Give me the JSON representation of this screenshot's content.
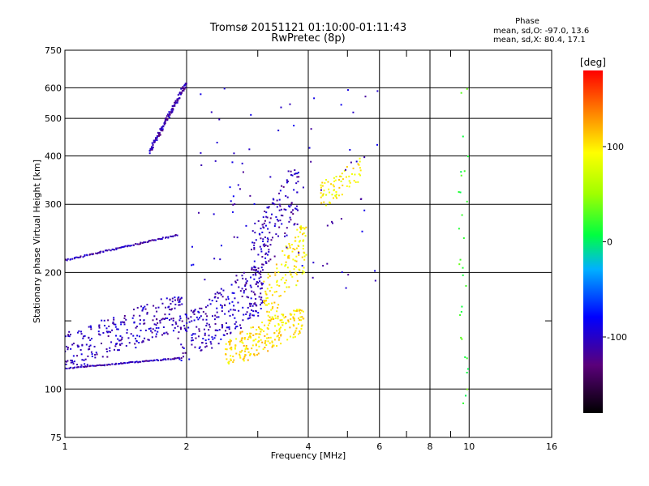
{
  "chart_data": {
    "type": "scatter",
    "title": "Tromsø 20151121 01:10:00-01:11:43",
    "subtitle": "RwPretec (8p)",
    "phase_title": "Phase",
    "phase_o": "mean, sd,O: -97.0, 13.6",
    "phase_x": "mean, sd,X:  80.4, 17.1",
    "xlabel": "Frequency [MHz]",
    "ylabel": "Stationary phase Virtual Height [km]",
    "x_scale": "log",
    "y_scale": "log",
    "xlim": [
      1,
      16
    ],
    "ylim": [
      75,
      750
    ],
    "x_ticks": [
      1,
      2,
      4,
      6,
      8,
      10,
      16
    ],
    "x_minor_ticks": [
      3,
      5,
      7,
      9
    ],
    "y_ticks": [
      75,
      100,
      200,
      300,
      400,
      500,
      600,
      750
    ],
    "y_minor_ticks": [
      150
    ],
    "grid": true,
    "colorbar": {
      "label": "[deg]",
      "range": [
        -180,
        180
      ],
      "ticks": [
        100,
        0,
        -100
      ]
    },
    "traces": [
      {
        "x0": 1.0,
        "x1": 1.9,
        "y0": 113,
        "y1": 120,
        "n": 90,
        "phase": -110,
        "spread": 3
      },
      {
        "x0": 1.0,
        "x1": 1.95,
        "y0": 117,
        "y1": 170,
        "n": 260,
        "phase": -105,
        "spread": 18,
        "scatter": true
      },
      {
        "x0": 1.0,
        "x1": 1.9,
        "y0": 215,
        "y1": 250,
        "n": 90,
        "phase": -110,
        "spread": 4
      },
      {
        "x0": 1.62,
        "x1": 2.0,
        "y0": 410,
        "y1": 620,
        "n": 120,
        "phase": -110,
        "spread": 15
      },
      {
        "x0": 1.9,
        "x1": 3.1,
        "y0": 120,
        "y1": 200,
        "n": 260,
        "phase": -105,
        "spread": 16,
        "scatter": true
      },
      {
        "x0": 2.5,
        "x1": 3.9,
        "y0": 117,
        "y1": 160,
        "n": 220,
        "phase": 105,
        "spread": 10,
        "scatter": true
      },
      {
        "x0": 3.1,
        "x1": 3.95,
        "y0": 150,
        "y1": 260,
        "n": 140,
        "phase": 100,
        "spread": 14,
        "scatter": true
      },
      {
        "x0": 2.9,
        "x1": 3.8,
        "y0": 200,
        "y1": 360,
        "n": 150,
        "phase": -108,
        "spread": 20,
        "scatter": true
      },
      {
        "x0": 4.3,
        "x1": 5.4,
        "y0": 300,
        "y1": 390,
        "n": 70,
        "phase": 95,
        "spread": 16,
        "scatter": true
      },
      {
        "x0": 2.0,
        "x1": 6.0,
        "y0": 180,
        "y1": 600,
        "n": 90,
        "phase": -100,
        "spread": 0,
        "sparse": true
      },
      {
        "x0": 9.4,
        "x1": 10.0,
        "y0": 90,
        "y1": 640,
        "n": 30,
        "phase": 20,
        "spread": 0,
        "sparse": true
      }
    ]
  }
}
